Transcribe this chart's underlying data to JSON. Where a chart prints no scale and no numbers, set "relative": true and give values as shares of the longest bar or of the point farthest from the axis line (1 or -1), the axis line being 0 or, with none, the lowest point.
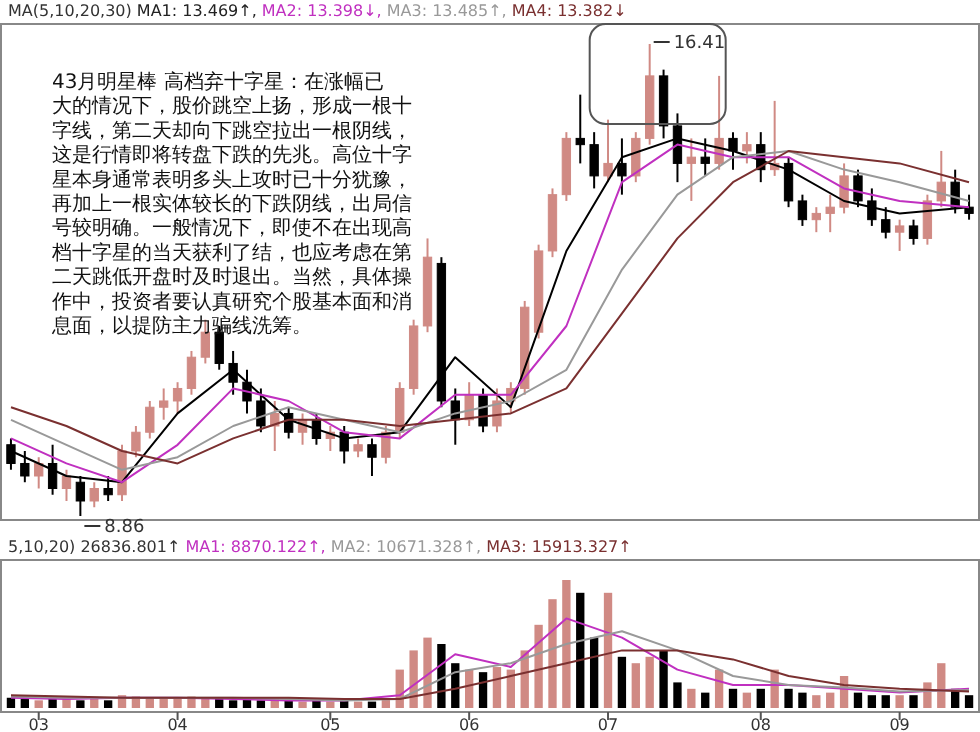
{
  "chart_data": [
    {
      "type": "candlestick",
      "legend": "top left",
      "legend_title": "MA(5,10,20,30)",
      "tick_labels": false,
      "categories": [
        null,
        null,
        null,
        null,
        null,
        null,
        null,
        null,
        null,
        null,
        null,
        null,
        null,
        null,
        null,
        null,
        null,
        null,
        null,
        null,
        null,
        null,
        null,
        null,
        null,
        null,
        null,
        null,
        null,
        null,
        null,
        null,
        null,
        null,
        null,
        null,
        null,
        null,
        null,
        null,
        null,
        null,
        null,
        null,
        null,
        null,
        null,
        null,
        null,
        null,
        null,
        null,
        null,
        null,
        null,
        null,
        null,
        null,
        null,
        null,
        null,
        null,
        null,
        null,
        null,
        null,
        null,
        null,
        null,
        null
      ],
      "ohlc": [
        [
          10.0,
          10.1,
          9.6,
          9.7
        ],
        [
          9.7,
          9.9,
          9.4,
          9.5
        ],
        [
          9.5,
          9.8,
          9.3,
          9.7
        ],
        [
          9.7,
          10.0,
          9.2,
          9.3
        ],
        [
          9.3,
          9.6,
          9.1,
          9.5
        ],
        [
          9.4,
          9.5,
          8.86,
          9.1
        ],
        [
          9.1,
          9.4,
          9.0,
          9.3
        ],
        [
          9.3,
          9.5,
          9.1,
          9.2
        ],
        [
          9.2,
          10.0,
          9.1,
          9.9
        ],
        [
          9.9,
          10.3,
          9.8,
          10.2
        ],
        [
          10.2,
          10.7,
          10.1,
          10.6
        ],
        [
          10.6,
          10.9,
          10.4,
          10.7
        ],
        [
          10.7,
          11.0,
          10.5,
          10.9
        ],
        [
          10.9,
          11.5,
          10.8,
          11.4
        ],
        [
          11.4,
          12.0,
          11.3,
          11.8
        ],
        [
          11.8,
          11.9,
          11.2,
          11.3
        ],
        [
          11.3,
          11.5,
          10.8,
          11.0
        ],
        [
          11.0,
          11.2,
          10.5,
          10.7
        ],
        [
          10.7,
          10.9,
          10.2,
          10.3
        ],
        [
          10.3,
          10.7,
          9.9,
          10.5
        ],
        [
          10.5,
          10.6,
          10.1,
          10.2
        ],
        [
          10.2,
          10.5,
          10.0,
          10.4
        ],
        [
          10.4,
          10.5,
          10.0,
          10.1
        ],
        [
          10.1,
          10.3,
          9.9,
          10.2
        ],
        [
          10.2,
          10.3,
          9.7,
          9.9
        ],
        [
          9.9,
          10.1,
          9.8,
          10.0
        ],
        [
          10.0,
          10.1,
          9.5,
          9.8
        ],
        [
          9.8,
          10.3,
          9.7,
          10.2
        ],
        [
          10.2,
          11.0,
          10.1,
          10.9
        ],
        [
          10.9,
          12.0,
          10.8,
          11.9
        ],
        [
          11.9,
          13.3,
          11.8,
          13.0
        ],
        [
          12.9,
          13.0,
          10.6,
          10.7
        ],
        [
          10.7,
          10.9,
          10.0,
          10.4
        ],
        [
          10.4,
          11.0,
          10.3,
          10.8
        ],
        [
          10.8,
          10.9,
          10.2,
          10.3
        ],
        [
          10.3,
          10.9,
          10.2,
          10.7
        ],
        [
          10.7,
          11.0,
          10.5,
          10.9
        ],
        [
          10.9,
          12.3,
          10.8,
          12.2
        ],
        [
          11.8,
          13.2,
          11.7,
          13.1
        ],
        [
          13.1,
          14.1,
          13.0,
          14.0
        ],
        [
          14.0,
          15.0,
          13.9,
          14.9
        ],
        [
          14.9,
          15.6,
          14.5,
          14.8
        ],
        [
          14.8,
          15.0,
          14.1,
          14.3
        ],
        [
          14.3,
          15.2,
          14.2,
          14.5
        ],
        [
          14.5,
          14.9,
          14.0,
          14.3
        ],
        [
          14.3,
          15.0,
          14.2,
          14.9
        ],
        [
          14.9,
          16.41,
          14.8,
          15.9
        ],
        [
          15.9,
          16.0,
          14.9,
          15.1
        ],
        [
          15.1,
          15.3,
          14.2,
          14.5
        ],
        [
          14.5,
          14.9,
          13.9,
          14.6
        ],
        [
          14.6,
          14.9,
          14.3,
          14.5
        ],
        [
          14.5,
          15.9,
          14.4,
          14.9
        ],
        [
          14.9,
          15.0,
          14.4,
          14.7
        ],
        [
          14.7,
          15.0,
          14.5,
          14.8
        ],
        [
          14.8,
          15.0,
          14.2,
          14.4
        ],
        [
          14.4,
          15.5,
          14.3,
          14.5
        ],
        [
          14.5,
          14.6,
          13.8,
          13.9
        ],
        [
          13.9,
          14.0,
          13.5,
          13.6
        ],
        [
          13.6,
          13.8,
          13.4,
          13.7
        ],
        [
          13.7,
          14.0,
          13.4,
          13.8
        ],
        [
          13.8,
          14.5,
          13.7,
          14.3
        ],
        [
          14.3,
          14.4,
          13.8,
          13.9
        ],
        [
          13.9,
          14.1,
          13.5,
          13.6
        ],
        [
          13.6,
          13.8,
          13.3,
          13.4
        ],
        [
          13.4,
          13.6,
          13.1,
          13.5
        ],
        [
          13.5,
          13.6,
          13.2,
          13.3
        ],
        [
          13.3,
          14.0,
          13.2,
          13.9
        ],
        [
          13.9,
          14.7,
          13.8,
          14.2
        ],
        [
          14.2,
          14.4,
          13.7,
          13.8
        ],
        [
          13.8,
          14.0,
          13.6,
          13.7
        ]
      ],
      "colors": [
        "#000000",
        "#000000",
        "#d08a84",
        "#000000",
        "#d08a84",
        "#000000",
        "#d08a84",
        "#000000",
        "#d08a84",
        "#d08a84",
        "#d08a84",
        "#d08a84",
        "#d08a84",
        "#d08a84",
        "#d08a84",
        "#000000",
        "#000000",
        "#000000",
        "#000000",
        "#d08a84",
        "#000000",
        "#d08a84",
        "#000000",
        "#d08a84",
        "#000000",
        "#d08a84",
        "#000000",
        "#d08a84",
        "#d08a84",
        "#d08a84",
        "#d08a84",
        "#000000",
        "#000000",
        "#d08a84",
        "#000000",
        "#d08a84",
        "#d08a84",
        "#d08a84",
        "#d08a84",
        "#d08a84",
        "#d08a84",
        "#000000",
        "#000000",
        "#d08a84",
        "#000000",
        "#d08a84",
        "#d08a84",
        "#000000",
        "#000000",
        "#d08a84",
        "#000000",
        "#d08a84",
        "#000000",
        "#d08a84",
        "#000000",
        "#d08a84",
        "#000000",
        "#000000",
        "#d08a84",
        "#d08a84",
        "#d08a84",
        "#000000",
        "#000000",
        "#000000",
        "#d08a84",
        "#000000",
        "#d08a84",
        "#d08a84",
        "#000000",
        "#000000"
      ],
      "series": [
        {
          "type": "line",
          "name": "MA1: 13.469↑,",
          "color": "#000000",
          "values": [
            9.9,
            null,
            null,
            null,
            9.5,
            null,
            null,
            null,
            9.4,
            null,
            null,
            null,
            10.5,
            null,
            null,
            null,
            11.2,
            null,
            null,
            null,
            10.4,
            null,
            null,
            null,
            10.1,
            null,
            null,
            null,
            10.2,
            null,
            null,
            null,
            11.4,
            null,
            null,
            null,
            10.6,
            null,
            null,
            null,
            13.1,
            null,
            null,
            null,
            14.6,
            null,
            null,
            null,
            14.9,
            null,
            null,
            null,
            14.7,
            null,
            null,
            null,
            14.4,
            null,
            null,
            null,
            13.9,
            null,
            null,
            null,
            13.7,
            null,
            null,
            null,
            null,
            13.8
          ]
        },
        {
          "type": "line",
          "name": "MA2: 13.398↓,",
          "color": "#c030c0",
          "values": [
            10.1,
            null,
            null,
            null,
            9.7,
            null,
            null,
            null,
            9.4,
            null,
            null,
            null,
            10.0,
            null,
            null,
            null,
            10.9,
            null,
            null,
            null,
            10.7,
            null,
            null,
            null,
            10.2,
            null,
            null,
            null,
            10.1,
            null,
            null,
            null,
            10.8,
            null,
            null,
            null,
            10.8,
            null,
            null,
            null,
            11.9,
            null,
            null,
            null,
            14.2,
            null,
            null,
            null,
            14.8,
            null,
            null,
            null,
            14.6,
            null,
            null,
            null,
            14.6,
            null,
            null,
            null,
            14.1,
            null,
            null,
            null,
            13.9,
            null,
            null,
            null,
            null,
            13.8
          ]
        },
        {
          "type": "line",
          "name": "MA3: 13.485↑,",
          "color": "#999999",
          "values": [
            10.4,
            null,
            null,
            null,
            10.0,
            null,
            null,
            null,
            9.6,
            null,
            null,
            null,
            9.8,
            null,
            null,
            null,
            10.3,
            null,
            null,
            null,
            10.6,
            null,
            null,
            null,
            10.4,
            null,
            null,
            null,
            10.2,
            null,
            null,
            null,
            10.5,
            null,
            null,
            null,
            10.7,
            null,
            null,
            null,
            11.2,
            null,
            null,
            null,
            12.8,
            null,
            null,
            null,
            14.0,
            null,
            null,
            null,
            14.6,
            null,
            null,
            null,
            14.7,
            null,
            null,
            null,
            14.4,
            null,
            null,
            null,
            14.2,
            null,
            null,
            null,
            null,
            13.9
          ]
        },
        {
          "type": "line",
          "name": "MA4: 13.382↓",
          "color": "#7a3030",
          "values": [
            10.6,
            null,
            null,
            null,
            10.3,
            null,
            null,
            null,
            9.9,
            null,
            null,
            null,
            9.7,
            null,
            null,
            null,
            10.1,
            null,
            null,
            null,
            10.4,
            null,
            null,
            null,
            10.4,
            null,
            null,
            null,
            10.3,
            null,
            null,
            null,
            10.4,
            null,
            null,
            null,
            10.5,
            null,
            null,
            null,
            10.9,
            null,
            null,
            null,
            12.1,
            null,
            null,
            null,
            13.3,
            null,
            null,
            null,
            14.2,
            null,
            null,
            null,
            14.7,
            null,
            null,
            null,
            14.6,
            null,
            null,
            null,
            14.5,
            null,
            null,
            null,
            null,
            14.2
          ]
        }
      ],
      "annotations": [
        "16.41",
        "8.86",
        "43月明星棒 高档弃十字星：在涨幅已大的情况下，股价跳空上扬，形成一根十字线，第二天却向下跳空拉出一根阴线，这是行情即将转盘下跌的先兆。高位十字星本身通常表明多头上攻时已十分犹豫，再加上一根实体较长的下跌阴线，出局信号较明确。一般情况下，即使不在出现高档十字星的当天获利了结，也应考虑在第二天跳低开盘时及时退出。当然，具体操作中，投资者要认真研究个股基本面和消息面，以提防主力骗线洗筹。"
      ]
    },
    {
      "type": "bar",
      "relative": true,
      "legend": "top left",
      "legend_title": "5,10,20) 26836.801↑",
      "tick_labels": "x",
      "categories": [
        null,
        null,
        "03",
        null,
        null,
        null,
        null,
        null,
        null,
        null,
        null,
        null,
        "04",
        null,
        null,
        null,
        null,
        null,
        null,
        null,
        null,
        null,
        null,
        "05",
        null,
        null,
        null,
        null,
        null,
        null,
        null,
        null,
        null,
        "06",
        null,
        null,
        null,
        null,
        null,
        null,
        null,
        null,
        null,
        "07",
        null,
        null,
        null,
        null,
        null,
        null,
        null,
        null,
        null,
        null,
        "08",
        null,
        null,
        null,
        null,
        null,
        null,
        null,
        null,
        null,
        "09",
        null,
        null,
        null,
        null,
        null
      ],
      "values": [
        0.08,
        0.07,
        0.06,
        0.08,
        0.07,
        0.06,
        0.07,
        0.06,
        0.1,
        0.09,
        0.08,
        0.07,
        0.08,
        0.09,
        0.08,
        0.07,
        0.06,
        0.07,
        0.06,
        0.07,
        0.06,
        0.05,
        0.06,
        0.05,
        0.06,
        0.05,
        0.05,
        0.07,
        0.3,
        0.45,
        0.55,
        0.5,
        0.35,
        0.3,
        0.28,
        0.32,
        0.3,
        0.45,
        0.65,
        0.85,
        1.0,
        0.9,
        0.55,
        0.9,
        0.4,
        0.35,
        0.4,
        0.45,
        0.2,
        0.15,
        0.12,
        0.3,
        0.15,
        0.12,
        0.15,
        0.3,
        0.15,
        0.12,
        0.1,
        0.12,
        0.25,
        0.12,
        0.1,
        0.1,
        0.1,
        0.1,
        0.2,
        0.35,
        0.15,
        0.1
      ],
      "colors": [
        "#000000",
        "#000000",
        "#d08a84",
        "#000000",
        "#d08a84",
        "#000000",
        "#d08a84",
        "#000000",
        "#d08a84",
        "#d08a84",
        "#d08a84",
        "#d08a84",
        "#d08a84",
        "#d08a84",
        "#d08a84",
        "#000000",
        "#000000",
        "#000000",
        "#000000",
        "#d08a84",
        "#000000",
        "#d08a84",
        "#000000",
        "#d08a84",
        "#000000",
        "#d08a84",
        "#000000",
        "#d08a84",
        "#d08a84",
        "#d08a84",
        "#d08a84",
        "#000000",
        "#000000",
        "#d08a84",
        "#000000",
        "#d08a84",
        "#d08a84",
        "#d08a84",
        "#d08a84",
        "#d08a84",
        "#d08a84",
        "#000000",
        "#000000",
        "#d08a84",
        "#000000",
        "#d08a84",
        "#d08a84",
        "#000000",
        "#000000",
        "#d08a84",
        "#000000",
        "#d08a84",
        "#000000",
        "#d08a84",
        "#000000",
        "#d08a84",
        "#000000",
        "#000000",
        "#d08a84",
        "#d08a84",
        "#d08a84",
        "#000000",
        "#000000",
        "#000000",
        "#d08a84",
        "#000000",
        "#d08a84",
        "#d08a84",
        "#000000",
        "#000000"
      ],
      "series": [
        {
          "type": "line",
          "name": "MA1: 8870.122↑,",
          "color": "#c030c0",
          "values": [
            0.08,
            null,
            null,
            null,
            0.07,
            null,
            null,
            null,
            0.08,
            null,
            null,
            null,
            0.08,
            null,
            null,
            null,
            0.07,
            null,
            null,
            null,
            0.06,
            null,
            null,
            null,
            0.06,
            null,
            null,
            null,
            0.1,
            null,
            null,
            null,
            0.42,
            null,
            null,
            null,
            0.32,
            null,
            null,
            null,
            0.7,
            null,
            null,
            null,
            0.55,
            null,
            null,
            null,
            0.3,
            null,
            null,
            null,
            0.18,
            null,
            null,
            null,
            0.18,
            null,
            null,
            null,
            0.15,
            null,
            null,
            null,
            0.12,
            null,
            null,
            null,
            null,
            0.15
          ]
        },
        {
          "type": "line",
          "name": "MA2: 10671.328↑,",
          "color": "#999999",
          "values": [
            0.09,
            null,
            null,
            null,
            0.08,
            null,
            null,
            null,
            0.08,
            null,
            null,
            null,
            0.08,
            null,
            null,
            null,
            0.08,
            null,
            null,
            null,
            0.07,
            null,
            null,
            null,
            0.06,
            null,
            null,
            null,
            0.07,
            null,
            null,
            null,
            0.28,
            null,
            null,
            null,
            0.35,
            null,
            null,
            null,
            0.5,
            null,
            null,
            null,
            0.6,
            null,
            null,
            null,
            0.45,
            null,
            null,
            null,
            0.25,
            null,
            null,
            null,
            0.18,
            null,
            null,
            null,
            0.16,
            null,
            null,
            null,
            0.13,
            null,
            null,
            null,
            null,
            0.14
          ]
        },
        {
          "type": "line",
          "name": "MA3: 15913.327↑",
          "color": "#7a3030",
          "values": [
            0.1,
            null,
            null,
            null,
            0.09,
            null,
            null,
            null,
            0.08,
            null,
            null,
            null,
            0.08,
            null,
            null,
            null,
            0.08,
            null,
            null,
            null,
            0.08,
            null,
            null,
            null,
            0.07,
            null,
            null,
            null,
            0.07,
            null,
            null,
            null,
            0.15,
            null,
            null,
            null,
            0.25,
            null,
            null,
            null,
            0.35,
            null,
            null,
            null,
            0.45,
            null,
            null,
            null,
            0.45,
            null,
            null,
            null,
            0.38,
            null,
            null,
            null,
            0.25,
            null,
            null,
            null,
            0.18,
            null,
            null,
            null,
            0.15,
            null,
            null,
            null,
            null,
            0.13
          ]
        }
      ]
    }
  ]
}
